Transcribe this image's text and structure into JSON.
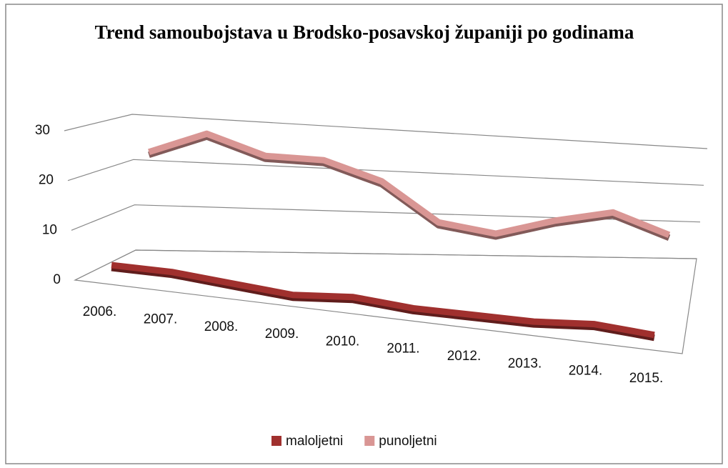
{
  "chart_data": {
    "type": "line3d",
    "title": "Trend samoubojstava u Brodsko-posavskoj županiji po godinama",
    "categories": [
      "2006.",
      "2007.",
      "2008.",
      "2009.",
      "2010.",
      "2011.",
      "2012.",
      "2013.",
      "2014.",
      "2015."
    ],
    "series": [
      {
        "name": "maloljetni",
        "color": "#a0302e",
        "values": [
          3,
          3,
          2,
          1,
          2,
          1,
          1,
          1,
          2,
          1
        ]
      },
      {
        "name": "punoljetni",
        "color": "#d99694",
        "values": [
          23,
          28,
          24,
          24,
          20,
          11,
          9,
          13,
          16,
          11
        ]
      }
    ],
    "ylim": [
      0,
      30
    ],
    "yticks": [
      0,
      10,
      20,
      30
    ],
    "grid": true,
    "legend": "bottom"
  }
}
